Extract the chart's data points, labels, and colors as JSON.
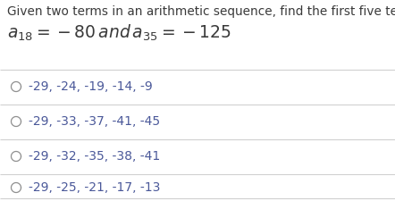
{
  "title": "Given two terms in an arithmetic sequence, find the first five terms:",
  "options": [
    "-29, -24, -19, -14, -9",
    "-29, -33, -37, -41, -45",
    "-29, -32, -35, -38, -41",
    "-29, -25, -21, -17, -13"
  ],
  "bg_color": "#ffffff",
  "text_color": "#4a5899",
  "title_color": "#3a3a3a",
  "divider_color": "#d0d0d0",
  "circle_color": "#909090",
  "title_fontsize": 9.8,
  "eq_fontsize": 13.5,
  "option_fontsize": 10.0,
  "fig_width": 4.42,
  "fig_height": 2.25,
  "dpi": 100
}
